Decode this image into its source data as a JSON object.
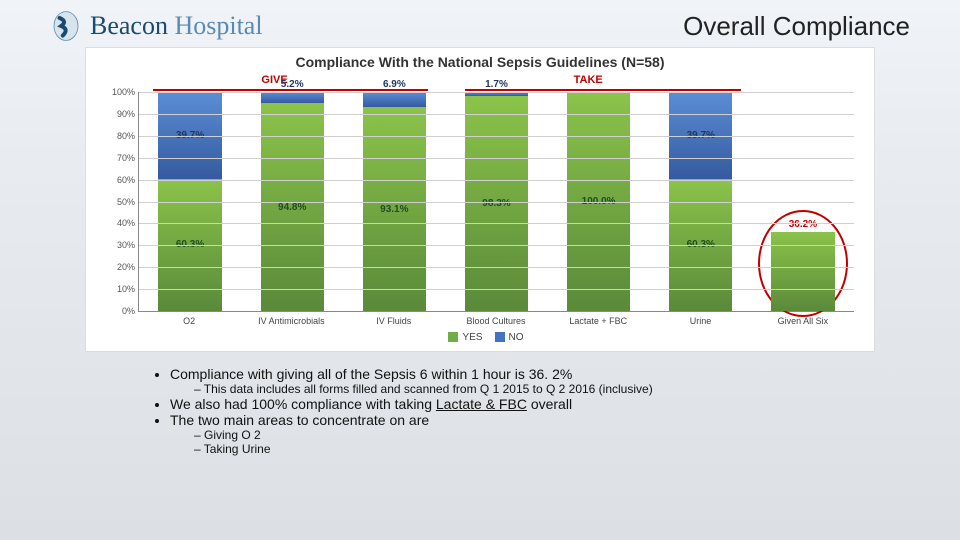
{
  "header": {
    "logo_word1": "Beacon",
    "logo_word2": "Hospital",
    "title": "Overall Compliance"
  },
  "chart": {
    "type": "stacked-bar",
    "title": "Compliance With the National Sepsis Guidelines (N=58)",
    "background_color": "#ffffff",
    "grid_color": "#d0d0d0",
    "axis_color": "#888888",
    "ylim": [
      0,
      100
    ],
    "ytick_step": 10,
    "ytick_suffix": "%",
    "bar_width_pct": 62,
    "sections": [
      {
        "label": "GIVE",
        "color": "#c00000",
        "label_left_pct": 17,
        "line_left_pct": 2,
        "line_width_pct": 38
      },
      {
        "label": "TAKE",
        "color": "#c00000",
        "label_left_pct": 60,
        "line_left_pct": 45,
        "line_width_pct": 38
      }
    ],
    "series": {
      "yes": {
        "label": "YES",
        "color": "#70ad47",
        "gradient_top": "#8bc34a",
        "gradient_bottom": "#5a8a3a",
        "text_color": "#1f4e1f"
      },
      "no": {
        "label": "NO",
        "color": "#4472c4",
        "gradient_top": "#5b8ed6",
        "gradient_bottom": "#355a9e",
        "text_color": "#1f3864"
      }
    },
    "categories": [
      "O2",
      "IV Antimicrobials",
      "IV Fluids",
      "Blood Cultures",
      "Lactate + FBC",
      "Urine",
      "Given All Six"
    ],
    "bars": [
      {
        "yes": 60.3,
        "no": 39.7,
        "yes_label": "60.3%",
        "no_label": "39.7%",
        "label_above": null
      },
      {
        "yes": 94.8,
        "no": 5.2,
        "yes_label": "94.8%",
        "no_label": null,
        "label_above": "5.2%",
        "label_above_color": "#1f3864"
      },
      {
        "yes": 93.1,
        "no": 6.9,
        "yes_label": "93.1%",
        "no_label": null,
        "label_above": "6.9%",
        "label_above_color": "#1f3864"
      },
      {
        "yes": 98.3,
        "no": 1.7,
        "yes_label": "98.3%",
        "no_label": null,
        "label_above": "1.7%",
        "label_above_color": "#1f3864"
      },
      {
        "yes": 100.0,
        "no": 0,
        "yes_label": "100.0%",
        "no_label": null,
        "label_above": null
      },
      {
        "yes": 60.3,
        "no": 39.7,
        "yes_label": "60.3%",
        "no_label": "39.7%",
        "label_above": null
      },
      {
        "yes": 36.2,
        "no": 0,
        "yes_label": null,
        "no_label": null,
        "label_above": "36.2%",
        "label_above_color": "#c00000",
        "highlight": true
      }
    ],
    "highlight": {
      "oval_color": "#c00000",
      "oval_border_width": 2
    }
  },
  "bullets": {
    "items": [
      {
        "text": "Compliance with giving all of the Sepsis 6 within 1 hour is 36. 2%",
        "sub": [
          "This data includes all forms filled and scanned from Q 1 2015 to Q 2 2016 (inclusive)"
        ]
      },
      {
        "text_pre": "We also had 100%  compliance with taking ",
        "text_u": "Lactate & FBC",
        "text_post": " overall"
      },
      {
        "text": "The two main areas to concentrate on are",
        "sub": [
          "Giving O 2",
          "Taking Urine"
        ]
      }
    ]
  }
}
